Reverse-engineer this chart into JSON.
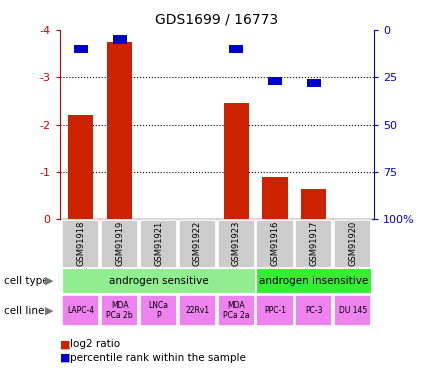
{
  "title": "GDS1699 / 16773",
  "samples": [
    "GSM91918",
    "GSM91919",
    "GSM91921",
    "GSM91922",
    "GSM91923",
    "GSM91916",
    "GSM91917",
    "GSM91920"
  ],
  "log2_ratio": [
    -2.2,
    -3.75,
    0,
    0,
    -2.45,
    -0.9,
    -0.65,
    0
  ],
  "percentile_rank": [
    10,
    5,
    0,
    0,
    10,
    27,
    28,
    0
  ],
  "ylim_left": [
    -4,
    0
  ],
  "ylim_right": [
    0,
    100
  ],
  "cell_lines": [
    "LAPC-4",
    "MDA\nPCa 2b",
    "LNCa\nP",
    "22Rv1",
    "MDA\nPCa 2a",
    "PPC-1",
    "PC-3",
    "DU 145"
  ],
  "cell_line_color": "#EE82EE",
  "bar_color": "#CC2200",
  "percentile_color": "#0000CC",
  "sample_bg": "#CCCCCC",
  "left_axis_color": "#CC0000",
  "right_axis_color": "#0000CC",
  "as_color": "#90EE90",
  "ai_color": "#33EE33",
  "left_yticks": [
    0,
    -1,
    -2,
    -3,
    -4
  ],
  "right_yticks": [
    0,
    25,
    50,
    75,
    100
  ],
  "left_yticklabels": [
    "0",
    "-1",
    "-2",
    "-3",
    "-4"
  ],
  "right_yticklabels": [
    "0",
    "25",
    "50",
    "75",
    "100%"
  ]
}
